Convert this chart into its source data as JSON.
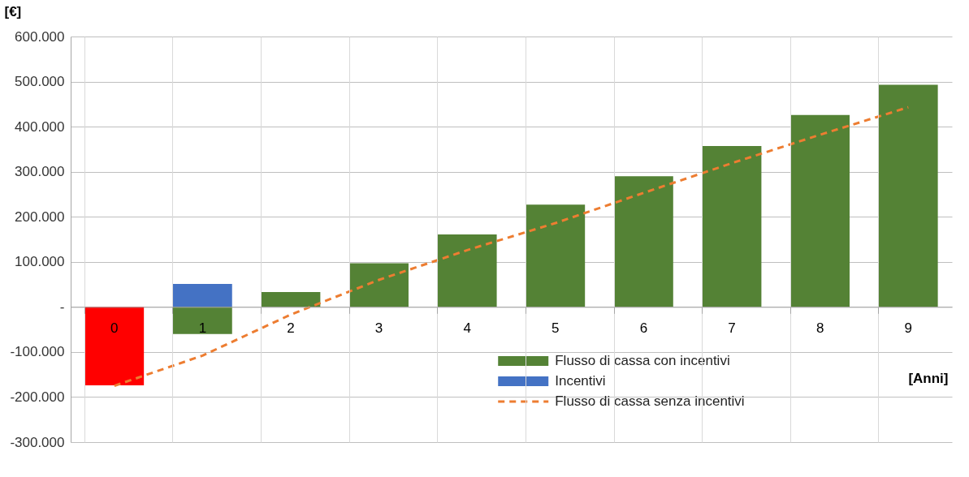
{
  "chart_data": {
    "type": "bar",
    "stacked": true,
    "xlabel": "[Anni]",
    "ylabel": "[€]",
    "categories": [
      "0",
      "1",
      "2",
      "3",
      "4",
      "5",
      "6",
      "7",
      "8",
      "9"
    ],
    "series": [
      {
        "name": "Flusso di cassa con incentivi",
        "color": "#548235",
        "colors": [
          "#ff0000",
          "#548235",
          "#548235",
          "#548235",
          "#548235",
          "#548235",
          "#548235",
          "#548235",
          "#548235",
          "#548235"
        ],
        "values": [
          -174000,
          -60000,
          33000,
          97000,
          161000,
          227000,
          290000,
          357000,
          426000,
          493000
        ]
      },
      {
        "name": "Incentivi",
        "color": "#4472c4",
        "values": [
          null,
          51000,
          null,
          null,
          null,
          null,
          null,
          null,
          null,
          null
        ]
      },
      {
        "name": "Flusso di cassa senza incentivi",
        "type": "line",
        "color": "#ed7d31",
        "line_style": "dashed",
        "values": [
          -175000,
          -108000,
          -17000,
          60000,
          126000,
          186000,
          253000,
          319000,
          382000,
          443000
        ]
      }
    ],
    "ylim": [
      -300000,
      600000
    ],
    "yticks": [
      {
        "value": -300000,
        "label": "-300.000"
      },
      {
        "value": -200000,
        "label": "-200.000"
      },
      {
        "value": -100000,
        "label": "-100.000"
      },
      {
        "value": 0,
        "label": "-"
      },
      {
        "value": 100000,
        "label": "100.000"
      },
      {
        "value": 200000,
        "label": "200.000"
      },
      {
        "value": 300000,
        "label": "300.000"
      },
      {
        "value": 400000,
        "label": "400.000"
      },
      {
        "value": 500000,
        "label": "500.000"
      },
      {
        "value": 600000,
        "label": "600.000"
      }
    ],
    "grid": true,
    "legend": "bottom right"
  }
}
